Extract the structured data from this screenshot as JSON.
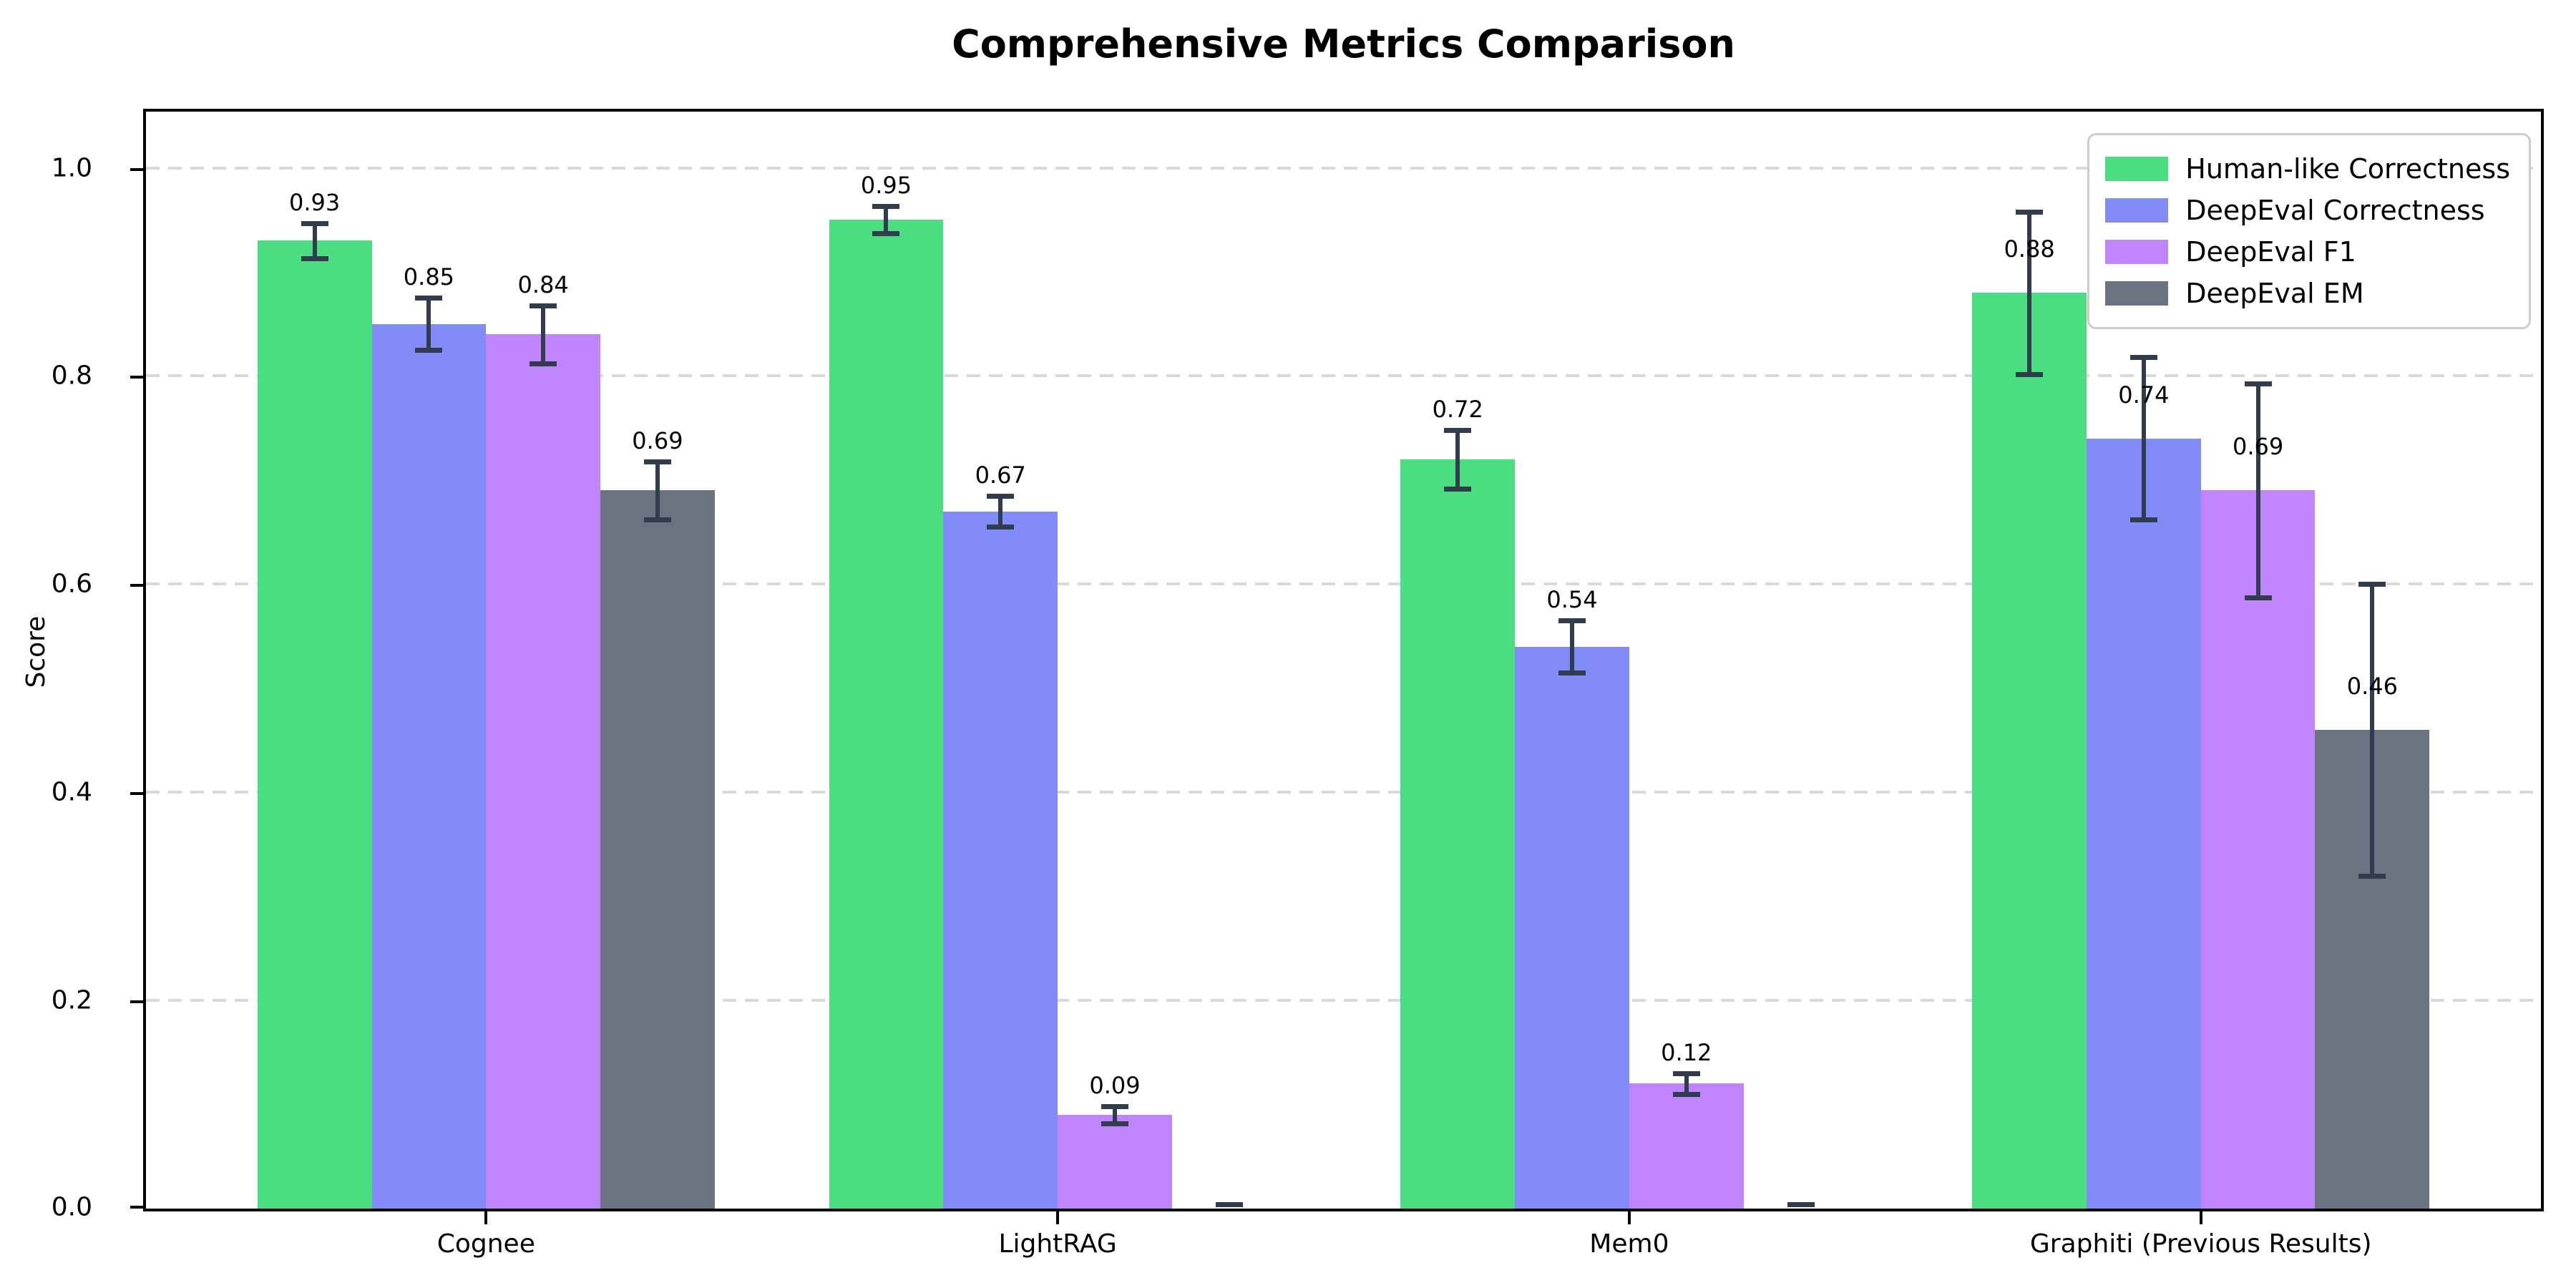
{
  "chart_data": {
    "type": "bar",
    "title": "Comprehensive Metrics Comparison",
    "xlabel": "",
    "ylabel": "Score",
    "categories": [
      "Cognee",
      "LightRAG",
      "Mem0",
      "Graphiti (Previous Results)"
    ],
    "series": [
      {
        "name": "Human-like Correctness",
        "color": "#4ade80",
        "values": [
          0.93,
          0.95,
          0.72,
          0.88
        ],
        "errors": [
          0.017,
          0.013,
          0.028,
          0.078
        ]
      },
      {
        "name": "DeepEval Correctness",
        "color": "#818cf8",
        "values": [
          0.85,
          0.67,
          0.54,
          0.74
        ],
        "errors": [
          0.025,
          0.015,
          0.025,
          0.078
        ]
      },
      {
        "name": "DeepEval F1",
        "color": "#c084fc",
        "values": [
          0.84,
          0.09,
          0.12,
          0.69
        ],
        "errors": [
          0.028,
          0.008,
          0.01,
          0.103
        ]
      },
      {
        "name": "DeepEval EM",
        "color": "#6b7280",
        "values": [
          0.69,
          0.0,
          0.0,
          0.46
        ],
        "errors": [
          0.028,
          0.003,
          0.003,
          0.14
        ]
      }
    ],
    "bar_value_labels": [
      [
        "0.93",
        "0.85",
        "0.84",
        "0.69"
      ],
      [
        "0.95",
        "0.67",
        "0.09",
        ""
      ],
      [
        "0.72",
        "0.54",
        "0.12",
        ""
      ],
      [
        "0.88",
        "0.74",
        "0.69",
        "0.46"
      ]
    ],
    "yticks": [
      "0.0",
      "0.2",
      "0.4",
      "0.6",
      "0.8",
      "1.0"
    ],
    "ylim": [
      0,
      1.054
    ],
    "grid": "horizontal-dashed",
    "legend_position": "upper-right",
    "colors": {
      "grid": "#d9d9d9",
      "error_bar": "#313d4f",
      "axis": "#000000",
      "background": "#ffffff",
      "legend_border": "#cccccc"
    }
  }
}
